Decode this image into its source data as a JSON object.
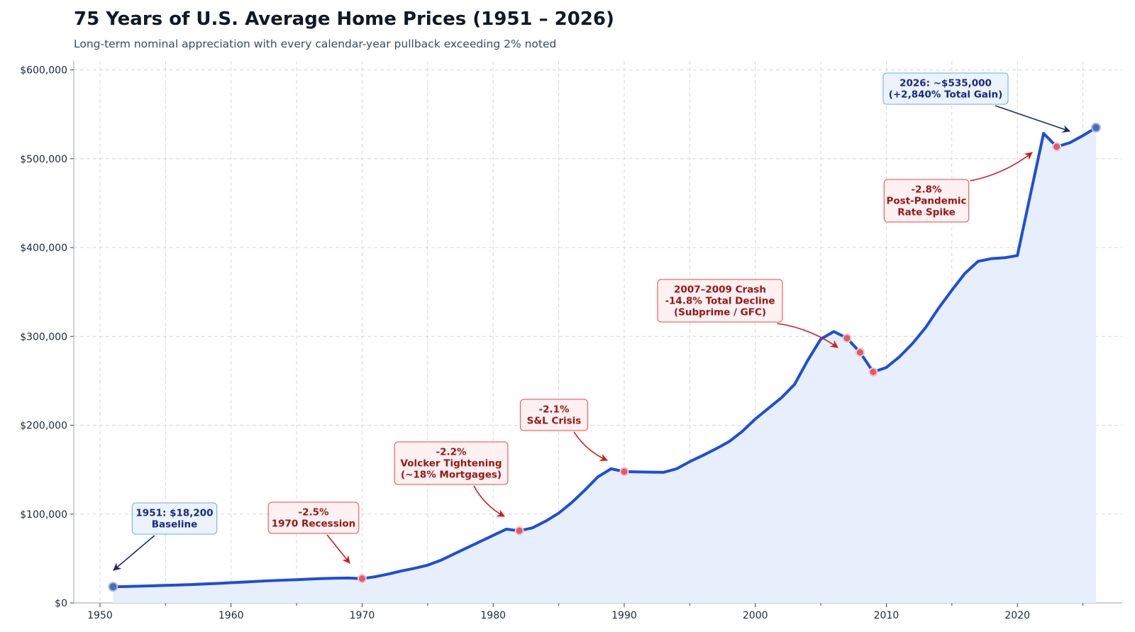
{
  "chart_data": {
    "type": "area",
    "title": "75 Years of U.S. Average Home Prices (1951 – 2026)",
    "subtitle": "Long-term nominal appreciation with every calendar-year pullback exceeding 2% noted",
    "xlabel": "",
    "ylabel": "",
    "xlim": [
      1948,
      2028
    ],
    "ylim": [
      0,
      610000
    ],
    "grid": true,
    "x_ticks": [
      1950,
      1960,
      1970,
      1980,
      1990,
      2000,
      2010,
      2020
    ],
    "y_ticks": [
      0,
      100000,
      200000,
      300000,
      400000,
      500000,
      600000
    ],
    "y_tick_labels": [
      "$0",
      "$100,000",
      "$200,000",
      "$300,000",
      "$400,000",
      "$500,000",
      "$600,000"
    ],
    "line_color": "#1d4ed8",
    "fill_color": "#e8effc",
    "marker_color_endpoints": "#4a6fb5",
    "marker_color_declines": "#e05a6a",
    "series": [
      {
        "x": [
          1951,
          1952,
          1953,
          1954,
          1955,
          1956,
          1957,
          1958,
          1959,
          1960,
          1961,
          1962,
          1963,
          1964,
          1965,
          1966,
          1967,
          1968,
          1969,
          1970,
          1971,
          1972,
          1973,
          1974,
          1975,
          1976,
          1977,
          1978,
          1979,
          1980,
          1981,
          1982,
          1983,
          1984,
          1985,
          1986,
          1987,
          1988,
          1989,
          1990,
          1991,
          1992,
          1993,
          1994,
          1995,
          1996,
          1997,
          1998,
          1999,
          2000,
          2001,
          2002,
          2003,
          2004,
          2005,
          2006,
          2007,
          2008,
          2009,
          2010,
          2011,
          2012,
          2013,
          2014,
          2015,
          2016,
          2017,
          2018,
          2019,
          2020,
          2021,
          2022,
          2023,
          2024,
          2025,
          2026
        ],
        "values": [
          18200,
          18500,
          18900,
          19300,
          19800,
          20200,
          20700,
          21400,
          22000,
          22800,
          23500,
          24300,
          25000,
          25600,
          26100,
          26800,
          27400,
          27800,
          28000,
          27300,
          29500,
          32500,
          36000,
          39000,
          42500,
          48000,
          55000,
          62000,
          69000,
          76000,
          83000,
          81200,
          84500,
          92000,
          101000,
          113000,
          127000,
          142000,
          151000,
          147800,
          147500,
          147200,
          147000,
          151000,
          159000,
          166000,
          173500,
          181500,
          193000,
          207000,
          219000,
          231000,
          246000,
          273000,
          297000,
          305500,
          298000,
          282000,
          260000,
          265000,
          277000,
          292000,
          310000,
          332000,
          352000,
          371000,
          384500,
          387500,
          388500,
          391000,
          460000,
          528500,
          513500,
          518000,
          526000,
          535000
        ]
      }
    ],
    "annotations": [
      {
        "x": 1951,
        "y": 18200,
        "lines": [
          "1951: $18,200",
          "Baseline"
        ],
        "style": "blue"
      },
      {
        "x": 1970,
        "y": 27300,
        "lines": [
          "-2.5%",
          "1970 Recession"
        ],
        "style": "red"
      },
      {
        "x": 1982,
        "y": 81200,
        "lines": [
          "-2.2%",
          "Volcker Tightening",
          "(~18% Mortgages)"
        ],
        "style": "red"
      },
      {
        "x": 1990,
        "y": 147800,
        "lines": [
          "-2.1%",
          "S&L Crisis"
        ],
        "style": "red"
      },
      {
        "x": 2008,
        "y": 282000,
        "lines": [
          "2007–2009 Crash",
          "-14.8% Total Decline",
          "(Subprime / GFC)"
        ],
        "style": "red"
      },
      {
        "x": 2023,
        "y": 513500,
        "lines": [
          "-2.8%",
          "Post-Pandemic",
          "Rate Spike"
        ],
        "style": "red"
      },
      {
        "x": 2026,
        "y": 535000,
        "lines": [
          "2026: ~$535,000",
          "(+2,840% Total Gain)"
        ],
        "style": "blue"
      }
    ],
    "decline_points": [
      {
        "x": 1970,
        "y": 27300
      },
      {
        "x": 1982,
        "y": 81200
      },
      {
        "x": 1990,
        "y": 147800
      },
      {
        "x": 2007,
        "y": 298000
      },
      {
        "x": 2008,
        "y": 282000
      },
      {
        "x": 2009,
        "y": 260000
      },
      {
        "x": 2023,
        "y": 513500
      }
    ],
    "endpoint_points": [
      {
        "x": 1951,
        "y": 18200
      },
      {
        "x": 2026,
        "y": 535000
      }
    ]
  }
}
